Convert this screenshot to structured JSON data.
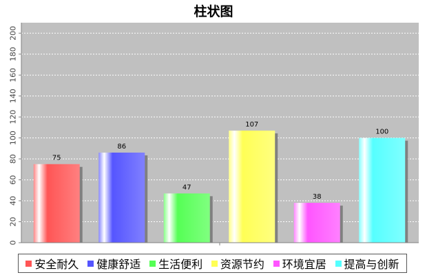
{
  "chart_data": {
    "type": "bar",
    "title": "柱状图",
    "categories": [
      "安全耐久",
      "健康舒适",
      "生活便利",
      "资源节约",
      "环境宜居",
      "提高与创新"
    ],
    "values": [
      75,
      86,
      47,
      107,
      38,
      100
    ],
    "colors": [
      "#ff5555",
      "#5555ff",
      "#55ff55",
      "#ffff55",
      "#ff55ff",
      "#55ffff"
    ],
    "ylim": [
      0,
      210
    ],
    "yticks": [
      0,
      20,
      40,
      60,
      80,
      100,
      120,
      140,
      160,
      180,
      200
    ],
    "grid": true,
    "legend": "bottom"
  }
}
